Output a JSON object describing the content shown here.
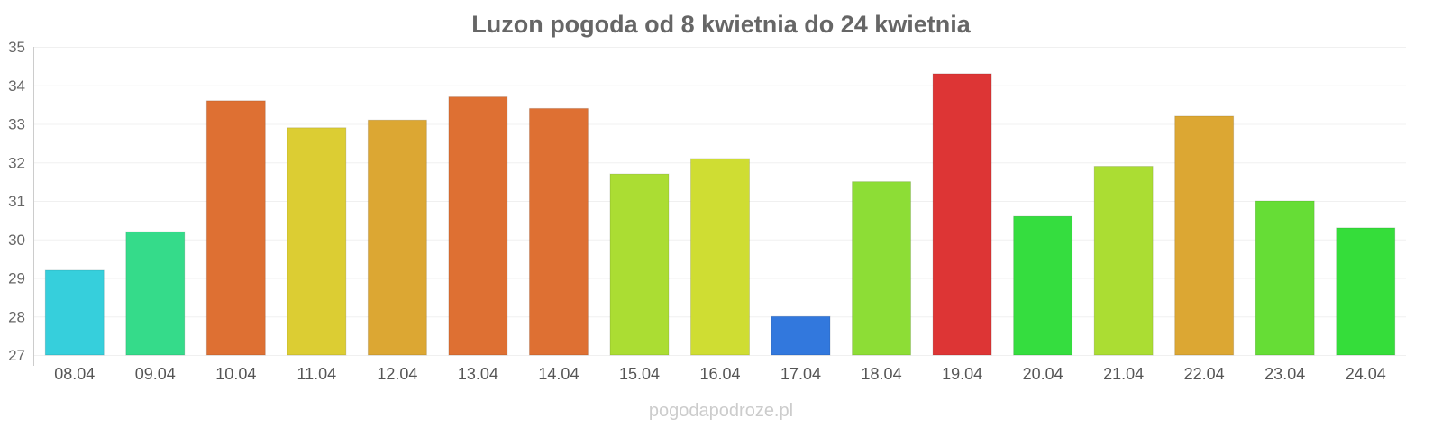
{
  "chart_data": {
    "type": "bar",
    "title": "Luzon pogoda od 8 kwietnia do 24 kwietnia",
    "xlabel": "",
    "ylabel": "",
    "ylim": [
      27,
      35
    ],
    "yticks": [
      27,
      28,
      29,
      30,
      31,
      32,
      33,
      34,
      35
    ],
    "grid": true,
    "categories": [
      "08.04",
      "09.04",
      "10.04",
      "11.04",
      "12.04",
      "13.04",
      "14.04",
      "15.04",
      "16.04",
      "17.04",
      "18.04",
      "19.04",
      "20.04",
      "21.04",
      "22.04",
      "23.04",
      "24.04"
    ],
    "values": [
      29.2,
      30.2,
      33.6,
      32.9,
      33.1,
      33.7,
      33.4,
      31.7,
      32.1,
      28.0,
      31.5,
      34.3,
      30.6,
      31.9,
      33.2,
      31.0,
      30.3
    ],
    "colors": [
      "#36cfdc",
      "#35db8a",
      "#de7033",
      "#dccd33",
      "#dca733",
      "#de7033",
      "#de7033",
      "#abdd33",
      "#cfdd33",
      "#3278dd",
      "#8ddd36",
      "#dd3535",
      "#35dd3f",
      "#abdd33",
      "#dca733",
      "#66dd36",
      "#35dd3a"
    ]
  },
  "watermark": "pogodapodroze.pl"
}
